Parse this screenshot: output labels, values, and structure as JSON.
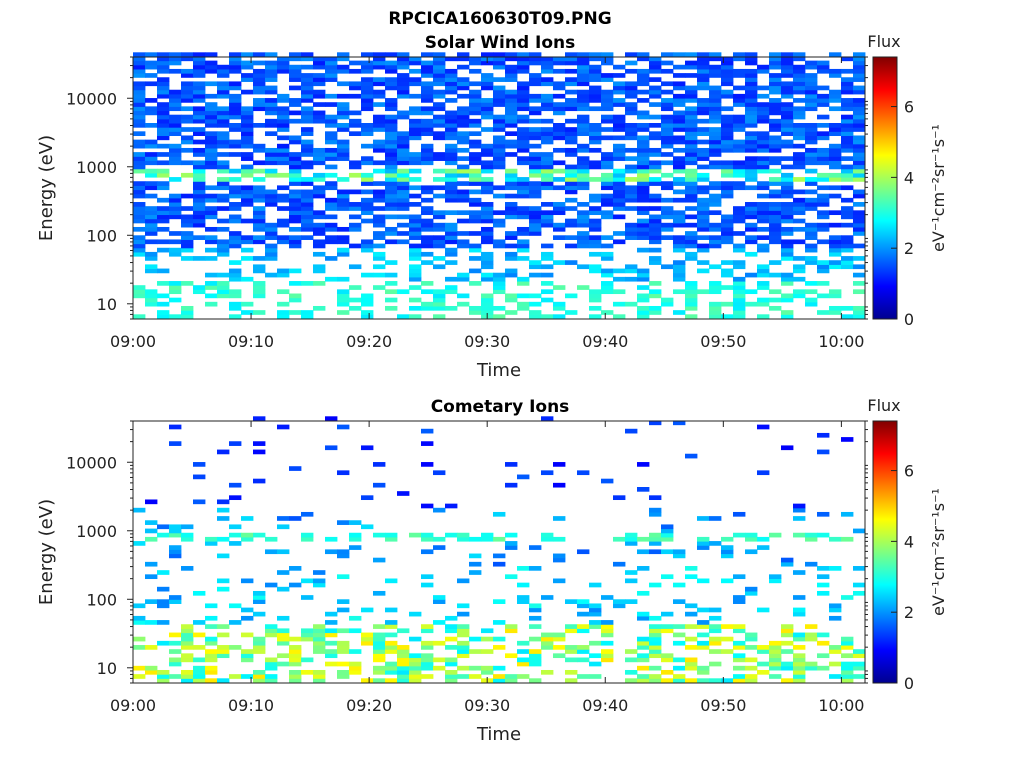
{
  "figure": {
    "title": "RPCICA160630T09.PNG",
    "background": "#ffffff"
  },
  "chart_data": [
    {
      "type": "heatmap",
      "title": "Solar Wind Ions",
      "xlabel": "Time",
      "ylabel": "Energy (eV)",
      "x_ticks": [
        "09:00",
        "09:10",
        "09:20",
        "09:30",
        "09:40",
        "09:50",
        "10:00"
      ],
      "x_range": [
        "09:00",
        "10:02"
      ],
      "y_ticks": [
        "10",
        "100",
        "1000",
        "10000"
      ],
      "y_range": [
        6,
        40000
      ],
      "y_scale": "log",
      "colorbar": {
        "title": "Flux",
        "label": "eV⁻¹cm⁻²sr⁻¹s⁻¹",
        "ticks": [
          "0",
          "2",
          "4",
          "6"
        ],
        "range": [
          0,
          7.4
        ],
        "colormap": "jet"
      },
      "description_of_values": "dense low-flux (~0.3-1.5) coverage above ~60 eV, enhanced flux (~3-4) near 700-800 eV and at lowest energies (~2-3)"
    },
    {
      "type": "heatmap",
      "title": "Cometary Ions",
      "xlabel": "Time",
      "ylabel": "Energy (eV)",
      "x_ticks": [
        "09:00",
        "09:10",
        "09:20",
        "09:30",
        "09:40",
        "09:50",
        "10:00"
      ],
      "x_range": [
        "09:00",
        "10:02"
      ],
      "y_ticks": [
        "10",
        "100",
        "1000",
        "10000"
      ],
      "y_range": [
        6,
        40000
      ],
      "y_scale": "log",
      "colorbar": {
        "title": "Flux",
        "label": "eV⁻¹cm⁻²sr⁻¹s⁻¹",
        "ticks": [
          "0",
          "2",
          "4",
          "6"
        ],
        "range": [
          0,
          7.4
        ],
        "colormap": "jet"
      },
      "description_of_values": "sparse low-flux points at high energies, moderate flux (~2-3) near 800 eV, strongest flux (~3-5) below ~25 eV"
    }
  ]
}
